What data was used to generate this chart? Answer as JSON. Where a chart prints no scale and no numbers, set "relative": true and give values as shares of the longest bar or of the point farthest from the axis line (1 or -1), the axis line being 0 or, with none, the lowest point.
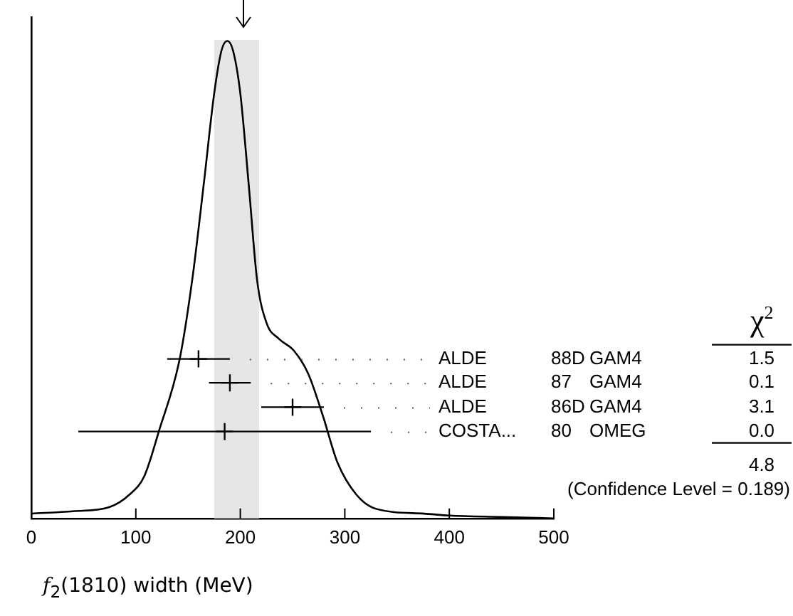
{
  "chart_data": {
    "type": "line",
    "relative": true,
    "xlabel": "f$_{2}$(1810) width (MeV)",
    "xlim": [
      0,
      500
    ],
    "xticks": [
      0,
      100,
      200,
      300,
      400,
      500
    ],
    "bands": [
      {
        "axis": "x",
        "from": 175,
        "to": 218,
        "color": "#e6e6e6"
      }
    ],
    "series": [
      {
        "color": "#000000",
        "x": [
          0,
          40,
          75,
          94,
          108,
          122,
          142,
          154,
          165,
          175,
          182,
          187.5,
          193,
          200,
          208,
          216,
          225,
          237,
          251,
          265,
          279,
          293,
          311,
          330,
          376,
          400,
          450,
          500
        ],
        "values": [
          0.01,
          0.015,
          0.024,
          0.05,
          0.088,
          0.182,
          0.334,
          0.5,
          0.7,
          0.89,
          0.98,
          1,
          0.98,
          0.89,
          0.7,
          0.5,
          0.41,
          0.376,
          0.352,
          0.303,
          0.215,
          0.117,
          0.05,
          0.02,
          0.01,
          0.006,
          0.003,
          0
        ]
      },
      {
        "type": "scatter",
        "color": "#000000",
        "marker": "cross",
        "x": [
          160,
          190,
          250,
          185
        ],
        "values": [
          0.334,
          0.284,
          0.233,
          0.182
        ],
        "xerrors": [
          30,
          20,
          30,
          140
        ]
      }
    ],
    "annotations": [
      "χ$^{2}$",
      "ALDE 88D GAM4 1.5",
      "ALDE 87 GAM4 0.1",
      "ALDE 86D GAM4 3.1",
      "COSTA... 80 OMEG 0.0",
      "4.8",
      "(Confidence Level = 0.189)"
    ]
  }
}
